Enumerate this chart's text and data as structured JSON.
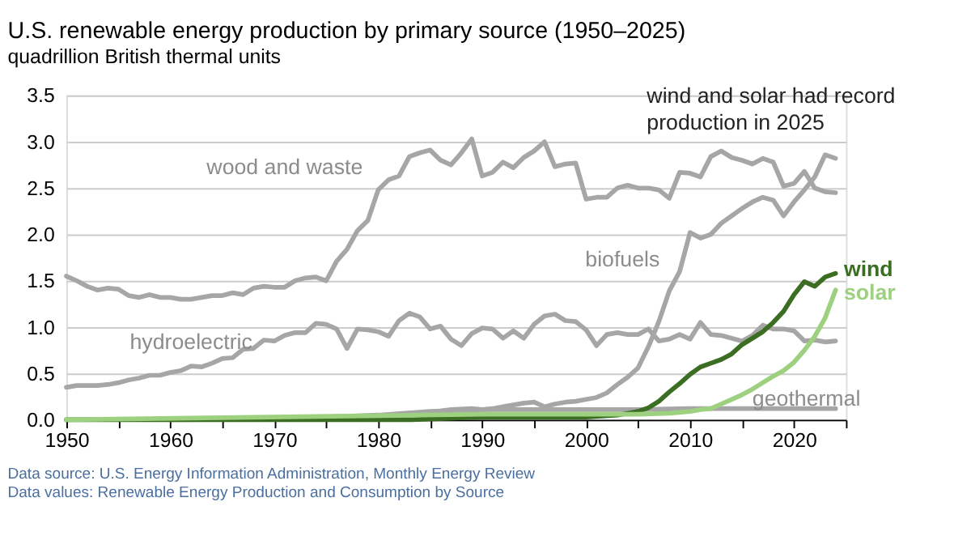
{
  "chart_data": {
    "type": "line",
    "title": "U.S. renewable energy production by primary source (1950–2025)",
    "subtitle": "quadrillion British thermal units",
    "x": [
      1950,
      1951,
      1952,
      1953,
      1954,
      1955,
      1956,
      1957,
      1958,
      1959,
      1960,
      1961,
      1962,
      1963,
      1964,
      1965,
      1966,
      1967,
      1968,
      1969,
      1970,
      1971,
      1972,
      1973,
      1974,
      1975,
      1976,
      1977,
      1978,
      1979,
      1980,
      1981,
      1982,
      1983,
      1984,
      1985,
      1986,
      1987,
      1988,
      1989,
      1990,
      1991,
      1992,
      1993,
      1994,
      1995,
      1996,
      1997,
      1998,
      1999,
      2000,
      2001,
      2002,
      2003,
      2004,
      2005,
      2006,
      2007,
      2008,
      2009,
      2010,
      2011,
      2012,
      2013,
      2014,
      2015,
      2016,
      2017,
      2018,
      2019,
      2020,
      2021,
      2022,
      2023,
      2024
    ],
    "series": [
      {
        "name": "wood and waste",
        "color": "#a6a6a6",
        "values": [
          1.55,
          1.5,
          1.44,
          1.4,
          1.42,
          1.41,
          1.34,
          1.32,
          1.35,
          1.32,
          1.32,
          1.3,
          1.3,
          1.32,
          1.34,
          1.34,
          1.37,
          1.35,
          1.42,
          1.44,
          1.43,
          1.43,
          1.5,
          1.53,
          1.54,
          1.5,
          1.71,
          1.84,
          2.04,
          2.15,
          2.48,
          2.59,
          2.63,
          2.84,
          2.88,
          2.91,
          2.8,
          2.75,
          2.88,
          3.03,
          2.63,
          2.67,
          2.78,
          2.72,
          2.83,
          2.9,
          3.0,
          2.73,
          2.76,
          2.77,
          2.38,
          2.4,
          2.4,
          2.5,
          2.53,
          2.5,
          2.5,
          2.48,
          2.39,
          2.67,
          2.66,
          2.62,
          2.84,
          2.9,
          2.83,
          2.8,
          2.76,
          2.82,
          2.78,
          2.52,
          2.55,
          2.68,
          2.5,
          2.46,
          2.45
        ]
      },
      {
        "name": "hydroelectric",
        "color": "#a6a6a6",
        "values": [
          0.35,
          0.37,
          0.37,
          0.37,
          0.38,
          0.4,
          0.43,
          0.45,
          0.48,
          0.48,
          0.51,
          0.53,
          0.58,
          0.57,
          0.61,
          0.66,
          0.67,
          0.76,
          0.77,
          0.86,
          0.85,
          0.91,
          0.94,
          0.94,
          1.04,
          1.03,
          0.98,
          0.77,
          0.98,
          0.97,
          0.95,
          0.9,
          1.07,
          1.15,
          1.11,
          0.98,
          1.01,
          0.87,
          0.8,
          0.93,
          0.99,
          0.98,
          0.88,
          0.96,
          0.88,
          1.03,
          1.12,
          1.14,
          1.07,
          1.06,
          0.97,
          0.8,
          0.92,
          0.94,
          0.92,
          0.92,
          0.98,
          0.85,
          0.87,
          0.92,
          0.87,
          1.05,
          0.92,
          0.91,
          0.88,
          0.85,
          0.91,
          1.02,
          0.98,
          0.98,
          0.96,
          0.85,
          0.86,
          0.84,
          0.85
        ]
      },
      {
        "name": "biofuels",
        "color": "#a6a6a6",
        "x": [
          1981,
          1983,
          1985,
          1987,
          1989,
          1990,
          1991,
          1992,
          1993,
          1994,
          1995,
          1996,
          1997,
          1998,
          1999,
          2000,
          2001,
          2002,
          2003,
          2004,
          2005,
          2006,
          2007,
          2008,
          2009,
          2010,
          2011,
          2012,
          2013,
          2014,
          2015,
          2016,
          2017,
          2018,
          2019,
          2020,
          2021,
          2022,
          2023,
          2024
        ],
        "values": [
          0.02,
          0.05,
          0.08,
          0.11,
          0.12,
          0.11,
          0.12,
          0.14,
          0.16,
          0.18,
          0.19,
          0.14,
          0.17,
          0.19,
          0.2,
          0.22,
          0.24,
          0.29,
          0.38,
          0.46,
          0.56,
          0.79,
          1.06,
          1.39,
          1.6,
          2.02,
          1.96,
          2.0,
          2.12,
          2.2,
          2.28,
          2.35,
          2.4,
          2.37,
          2.2,
          2.35,
          2.48,
          2.62,
          2.86,
          2.82
        ]
      },
      {
        "name": "geothermal",
        "color": "#a6a6a6",
        "x": [
          1960,
          1970,
          1975,
          1980,
          1985,
          1990,
          1995,
          2000,
          2005,
          2010,
          2015,
          2020,
          2024
        ],
        "values": [
          0.0,
          0.01,
          0.03,
          0.05,
          0.09,
          0.11,
          0.11,
          0.11,
          0.11,
          0.12,
          0.12,
          0.12,
          0.12
        ]
      },
      {
        "name": "wind",
        "color": "#3b6e22",
        "x": [
          1950,
          1983,
          1990,
          1995,
          2000,
          2003,
          2004,
          2005,
          2006,
          2007,
          2008,
          2009,
          2010,
          2011,
          2012,
          2013,
          2014,
          2015,
          2016,
          2017,
          2018,
          2019,
          2020,
          2021,
          2022,
          2023,
          2024
        ],
        "values": [
          0.0,
          0.0,
          0.03,
          0.03,
          0.03,
          0.05,
          0.07,
          0.09,
          0.13,
          0.2,
          0.3,
          0.39,
          0.49,
          0.57,
          0.61,
          0.65,
          0.71,
          0.81,
          0.88,
          0.95,
          1.05,
          1.17,
          1.35,
          1.49,
          1.44,
          1.54,
          1.58
        ]
      },
      {
        "name": "solar",
        "color": "#9dd07f",
        "x": [
          1950,
          1984,
          1990,
          2000,
          2005,
          2008,
          2010,
          2011,
          2012,
          2013,
          2014,
          2015,
          2016,
          2017,
          2018,
          2019,
          2020,
          2021,
          2022,
          2023,
          2024
        ],
        "values": [
          0.0,
          0.05,
          0.06,
          0.06,
          0.06,
          0.07,
          0.09,
          0.11,
          0.12,
          0.17,
          0.22,
          0.27,
          0.33,
          0.4,
          0.47,
          0.53,
          0.62,
          0.75,
          0.9,
          1.1,
          1.4
        ]
      }
    ],
    "xlim": [
      1950,
      2025
    ],
    "xticks": [
      1950,
      {
        "value": 1955,
        "label": null
      },
      1960,
      {
        "value": 1965,
        "label": null
      },
      1970,
      {
        "value": 1975,
        "label": null
      },
      1980,
      {
        "value": 1985,
        "label": null
      },
      1990,
      {
        "value": 1995,
        "label": null
      },
      2000,
      {
        "value": 2005,
        "label": null
      },
      2010,
      {
        "value": 2015,
        "label": null
      },
      2020,
      {
        "value": 2025,
        "label": null
      }
    ],
    "ylim": [
      0,
      3.5
    ],
    "yticks": [
      {
        "value": 0,
        "label": "0.0"
      },
      {
        "value": 0.5,
        "label": "0.5"
      },
      {
        "value": 1,
        "label": "1.0"
      },
      {
        "value": 1.5,
        "label": "1.5"
      },
      {
        "value": 2,
        "label": "2.0"
      },
      {
        "value": 2.5,
        "label": "2.5"
      },
      {
        "value": 3,
        "label": "3.0"
      },
      {
        "value": 3.5,
        "label": "3.5"
      }
    ],
    "grid": "y",
    "legend": false,
    "line_style": "solid",
    "marker": "none",
    "annotations": [
      "wind and solar had record production in 2025",
      "Data source: U.S. Energy Information Administration, Monthly Energy Review",
      "Data values: Renewable Energy Production and Consumption by Source"
    ]
  }
}
